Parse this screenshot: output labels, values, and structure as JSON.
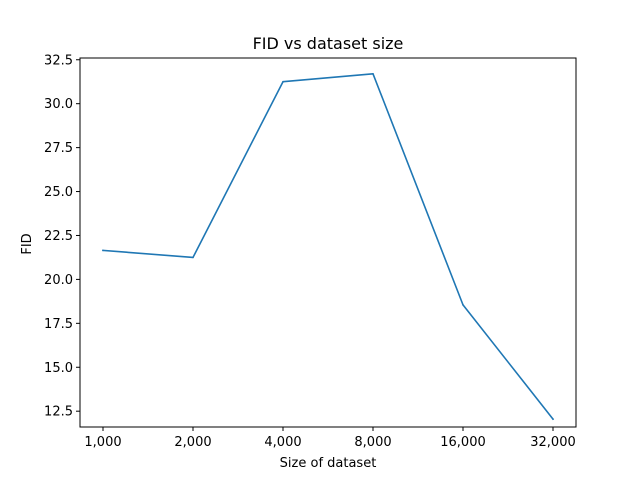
{
  "chart_data": {
    "type": "line",
    "title": "FID vs dataset size",
    "xlabel": "Size of dataset",
    "ylabel": "FID",
    "categories": [
      "1,000",
      "2,000",
      "4,000",
      "8,000",
      "16,000",
      "32,000"
    ],
    "series": [
      {
        "name": "FID",
        "color": "#1f77b4",
        "values": [
          21.65,
          21.25,
          31.25,
          31.7,
          18.55,
          12.05
        ]
      }
    ],
    "ylim": [
      11.6,
      32.6
    ],
    "yticks": [
      12.5,
      15.0,
      17.5,
      20.0,
      22.5,
      25.0,
      27.5,
      30.0,
      32.5
    ],
    "ytick_labels": [
      "12.5",
      "15.0",
      "17.5",
      "20.0",
      "22.5",
      "25.0",
      "27.5",
      "30.0",
      "32.5"
    ],
    "grid": false,
    "legend": "none"
  }
}
